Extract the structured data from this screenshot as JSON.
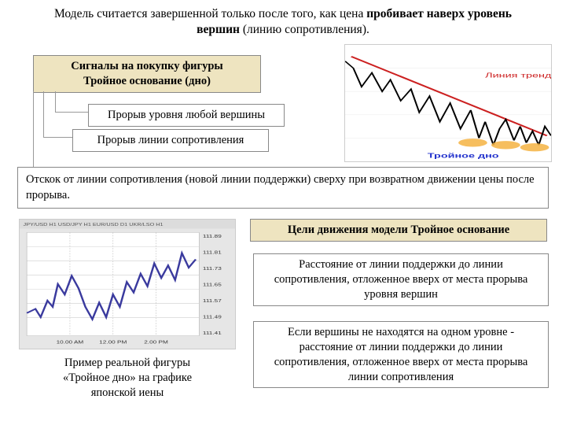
{
  "title_pre": "Модель считается завершенной только после того, как цена ",
  "title_b1": "пробивает наверх уровень вершин",
  "title_mid": " (линию сопротивления).",
  "box_signals_l1": "Сигналы на покупку фигуры",
  "box_signals_l2": "Тройное основание (дно)",
  "box_break_peak": "Прорыв уровня любой вершины",
  "box_break_resist": "Прорыв линии сопротивления",
  "wide_bounce": "Отскок от линии сопротивления (новой линии поддержки) сверху при возвратном движении цены после прорыва.",
  "box_goals": "Цели движения модели Тройное основание",
  "box_dist1": "Расстояние от линии поддержки до линии сопротивления, отложенное вверх от места прорыва уровня вершин",
  "box_dist2": "Если вершины не находятся на одном уровне - расстояние от линии поддержки до линии сопротивления, отложенное вверх от места прорыва линии сопротивления",
  "caption_example_l1": "Пример реальной фигуры",
  "caption_example_l2": "«Тройное дно» на графике",
  "caption_example_l3": "японской иены",
  "chart1": {
    "type": "line",
    "trend_label": "Линия тренда",
    "bottom_label": "Тройное дно",
    "line_color": "#000000",
    "trend_color": "#cc2020",
    "highlight_color": "#f5b342",
    "points": [
      [
        0,
        14
      ],
      [
        4,
        20
      ],
      [
        8,
        36
      ],
      [
        13,
        24
      ],
      [
        18,
        40
      ],
      [
        22,
        30
      ],
      [
        27,
        48
      ],
      [
        32,
        38
      ],
      [
        36,
        58
      ],
      [
        41,
        44
      ],
      [
        46,
        66
      ],
      [
        51,
        50
      ],
      [
        56,
        72
      ],
      [
        61,
        56
      ],
      [
        65,
        80
      ],
      [
        68,
        66
      ],
      [
        72,
        86
      ],
      [
        75,
        72
      ],
      [
        78,
        64
      ],
      [
        82,
        82
      ],
      [
        85,
        70
      ],
      [
        88,
        84
      ],
      [
        91,
        74
      ],
      [
        94,
        86
      ],
      [
        97,
        70
      ],
      [
        100,
        78
      ]
    ],
    "trend_line": [
      [
        3,
        10
      ],
      [
        98,
        78
      ]
    ],
    "ellipses": [
      [
        62,
        84
      ],
      [
        78,
        86
      ],
      [
        92,
        88
      ]
    ]
  },
  "chart2": {
    "type": "line",
    "bg": "#e6e6e6",
    "line_color": "#3a3a9e",
    "grid_color": "#c2c2c2",
    "yticks": [
      "111.89",
      "111.81",
      "111.73",
      "111.65",
      "111.57",
      "111.49",
      "111.41"
    ],
    "xticks": [
      "10.00 AM",
      "12.00 PM",
      "2.00 PM"
    ],
    "points": [
      [
        0,
        78
      ],
      [
        5,
        74
      ],
      [
        8,
        82
      ],
      [
        12,
        66
      ],
      [
        15,
        72
      ],
      [
        18,
        50
      ],
      [
        22,
        60
      ],
      [
        26,
        42
      ],
      [
        30,
        54
      ],
      [
        34,
        72
      ],
      [
        38,
        84
      ],
      [
        42,
        68
      ],
      [
        46,
        82
      ],
      [
        50,
        60
      ],
      [
        54,
        72
      ],
      [
        58,
        48
      ],
      [
        62,
        58
      ],
      [
        66,
        40
      ],
      [
        70,
        52
      ],
      [
        74,
        30
      ],
      [
        78,
        44
      ],
      [
        82,
        32
      ],
      [
        86,
        46
      ],
      [
        90,
        20
      ],
      [
        94,
        34
      ],
      [
        98,
        26
      ]
    ]
  },
  "colors": {
    "khaki": "#eee4c0",
    "border": "#888888"
  }
}
